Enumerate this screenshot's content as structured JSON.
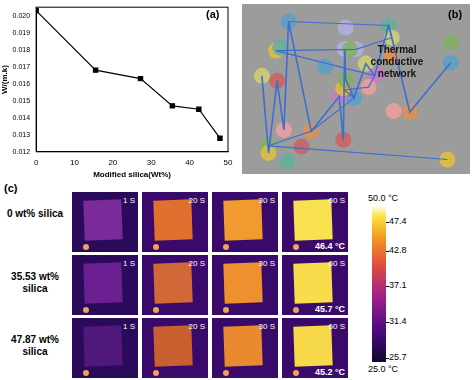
{
  "chart_data": {
    "type": "line",
    "panel": "(a)",
    "x_label": "Modified silica(Wt%)",
    "y_label": "W/(m.k)",
    "x": [
      0,
      15.5,
      27.2,
      35.5,
      42.4,
      47.9
    ],
    "values": [
      0.0203,
      0.0168,
      0.0163,
      0.0147,
      0.0145,
      0.0128
    ],
    "color": "#000000",
    "marker": "square",
    "xlim": [
      0,
      50
    ],
    "xticks": [
      0,
      10,
      20,
      30,
      40,
      50
    ],
    "ylim": [
      0.012,
      0.0205
    ],
    "yticks": [
      0.012,
      0.013,
      0.014,
      0.015,
      0.016,
      0.017,
      0.018,
      0.019,
      {
        "value": 0.02,
        "label": "0.020"
      }
    ],
    "grid": false
  },
  "diagram": {
    "panel": "(b)",
    "label": "Thermal conductive network"
  },
  "thermal_images": {
    "panel": "(c)",
    "times": [
      "1 S",
      "20 S",
      "30 S",
      "60 S"
    ],
    "rows": [
      {
        "label": "0 wt% silica",
        "temperature": "46.4 °C"
      },
      {
        "label": "35.53 wt% silica",
        "temperature": "45.7 °C"
      },
      {
        "label": "47.87 wt% silica",
        "temperature": "45.2 °C"
      }
    ],
    "color_bar": {
      "range": [
        25,
        50
      ],
      "ticks": [
        {
          "value": 50,
          "label": "50.0 °C"
        },
        47.4,
        42.8,
        37.1,
        31.4,
        25.7,
        {
          "value": 25,
          "label": "25.0 °C"
        }
      ]
    }
  }
}
